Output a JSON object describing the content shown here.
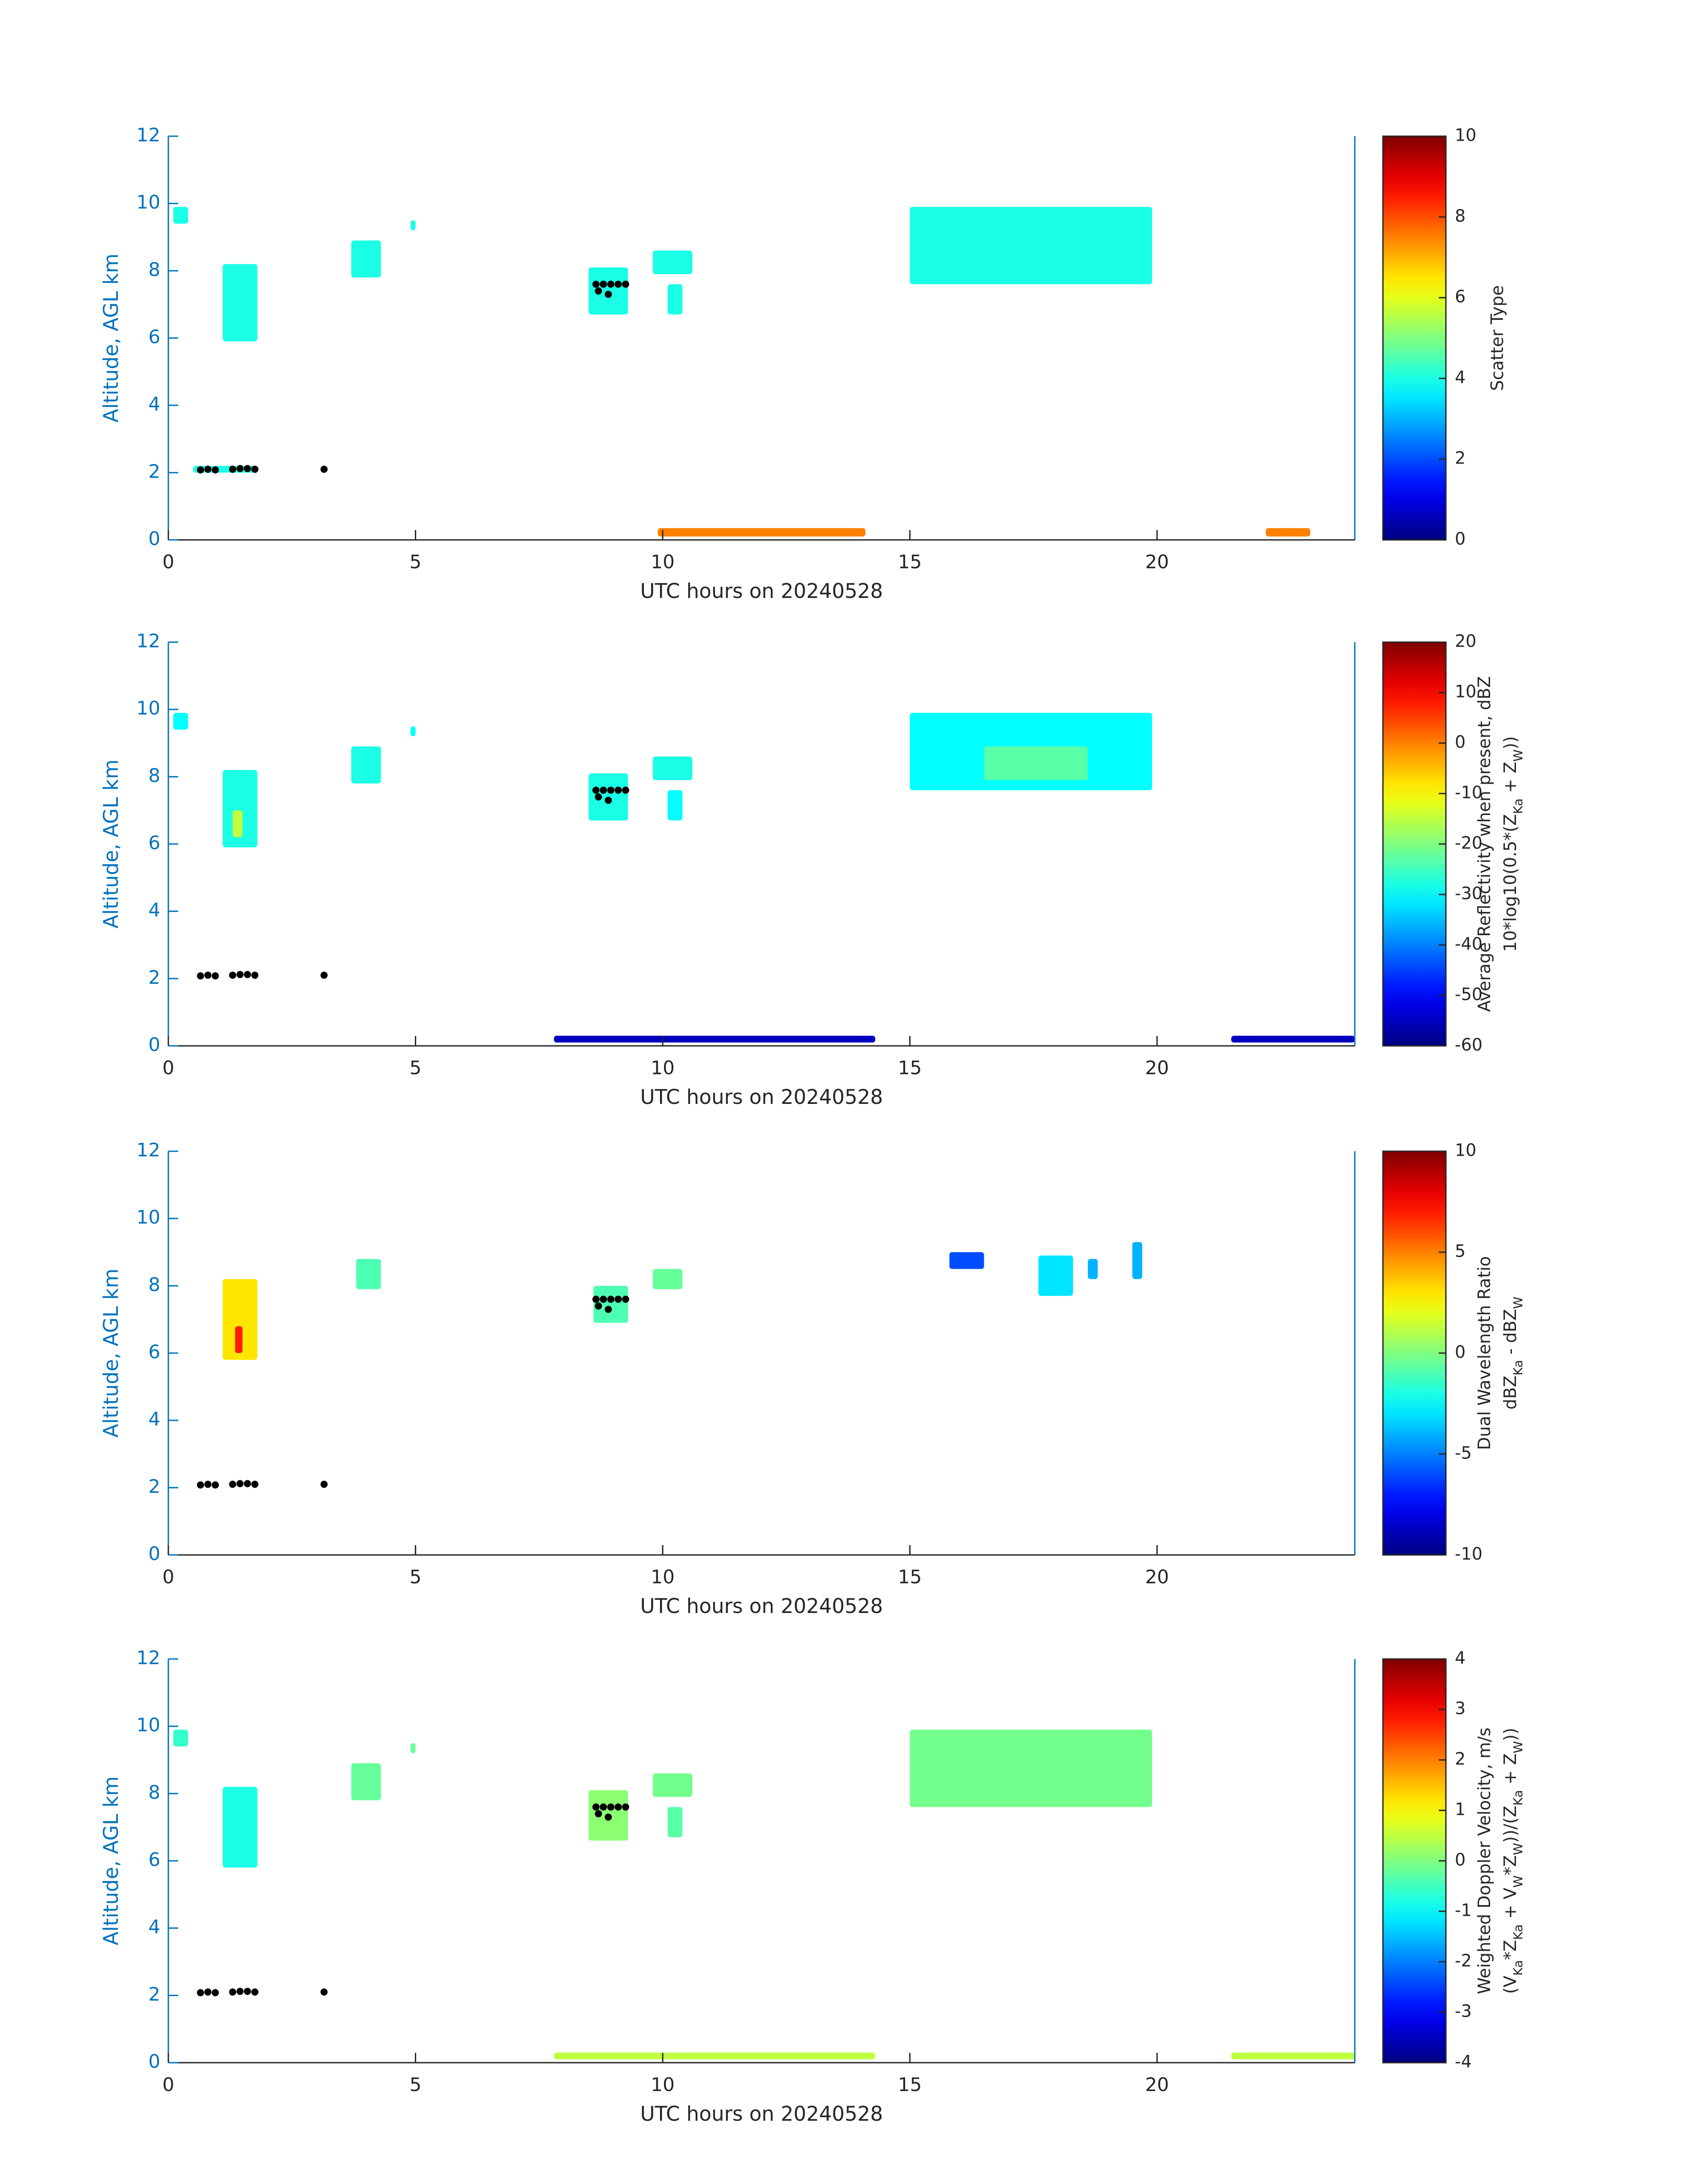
{
  "chart_data": [
    {
      "type": "timeheight",
      "colormap": "jet",
      "xlabel": "UTC hours on 20240528",
      "ylabel": "Altitude, AGL km",
      "xlim": [
        0,
        24
      ],
      "xticks": [
        0,
        5,
        10,
        15,
        20
      ],
      "ylim": [
        0,
        12
      ],
      "yticks": [
        0,
        2,
        4,
        6,
        8,
        10,
        12
      ],
      "clim": [
        0,
        10
      ],
      "cticks": [
        0,
        2,
        4,
        6,
        8,
        10
      ],
      "clabel": [
        [
          "Scatter Type"
        ]
      ],
      "regions": [
        {
          "x": [
            0.1,
            0.4
          ],
          "y": [
            9.4,
            9.9
          ],
          "value": 4
        },
        {
          "x": [
            1.1,
            1.8
          ],
          "y": [
            5.9,
            8.2
          ],
          "value": 4
        },
        {
          "x": [
            3.7,
            4.3
          ],
          "y": [
            7.8,
            8.9
          ],
          "value": 4
        },
        {
          "x": [
            4.9,
            5.0
          ],
          "y": [
            9.2,
            9.5
          ],
          "value": 4
        },
        {
          "x": [
            8.5,
            9.3
          ],
          "y": [
            6.7,
            8.1
          ],
          "value": 4
        },
        {
          "x": [
            9.8,
            10.6
          ],
          "y": [
            7.9,
            8.6
          ],
          "value": 4
        },
        {
          "x": [
            10.1,
            10.4
          ],
          "y": [
            6.7,
            7.6
          ],
          "value": 4
        },
        {
          "x": [
            15.0,
            19.9
          ],
          "y": [
            7.6,
            9.9
          ],
          "value": 4
        },
        {
          "x": [
            0.5,
            1.8
          ],
          "y": [
            2.0,
            2.2
          ],
          "value": 4
        },
        {
          "x": [
            9.9,
            14.1
          ],
          "y": [
            0.1,
            0.35
          ],
          "value": 7.5
        },
        {
          "x": [
            22.2,
            23.1
          ],
          "y": [
            0.1,
            0.35
          ],
          "value": 7.5
        }
      ],
      "markers": {
        "x": [
          0.65,
          0.8,
          0.95,
          1.3,
          1.45,
          1.6,
          1.75,
          3.15,
          8.65,
          8.8,
          8.95,
          9.1,
          9.25,
          8.7,
          8.9
        ],
        "y": [
          2.08,
          2.1,
          2.08,
          2.1,
          2.12,
          2.12,
          2.1,
          2.1,
          7.6,
          7.6,
          7.6,
          7.6,
          7.6,
          7.4,
          7.3
        ],
        "color": "#000000"
      }
    },
    {
      "type": "timeheight",
      "colormap": "jet",
      "xlabel": "UTC hours on 20240528",
      "ylabel": "Altitude, AGL km",
      "xlim": [
        0,
        24
      ],
      "xticks": [
        0,
        5,
        10,
        15,
        20
      ],
      "ylim": [
        0,
        12
      ],
      "yticks": [
        0,
        2,
        4,
        6,
        8,
        10,
        12
      ],
      "clim": [
        -60,
        20
      ],
      "cticks": [
        -60,
        -50,
        -40,
        -30,
        -20,
        -10,
        0,
        10,
        20
      ],
      "clabel": [
        [
          "Average Reflectivity when present, dBZ"
        ],
        [
          "10*log10(0.5*(Z",
          "Ka",
          " + Z",
          "W",
          "))"
        ]
      ],
      "regions": [
        {
          "x": [
            0.1,
            0.4
          ],
          "y": [
            9.4,
            9.9
          ],
          "value": -30
        },
        {
          "x": [
            1.1,
            1.8
          ],
          "y": [
            5.9,
            8.2
          ],
          "value": -28
        },
        {
          "x": [
            1.3,
            1.5
          ],
          "y": [
            6.2,
            7.0
          ],
          "value": -15
        },
        {
          "x": [
            3.7,
            4.3
          ],
          "y": [
            7.8,
            8.9
          ],
          "value": -28
        },
        {
          "x": [
            4.9,
            5.0
          ],
          "y": [
            9.2,
            9.5
          ],
          "value": -30
        },
        {
          "x": [
            8.5,
            9.3
          ],
          "y": [
            6.7,
            8.1
          ],
          "value": -28
        },
        {
          "x": [
            9.8,
            10.6
          ],
          "y": [
            7.9,
            8.6
          ],
          "value": -28
        },
        {
          "x": [
            10.1,
            10.4
          ],
          "y": [
            6.7,
            7.6
          ],
          "value": -30
        },
        {
          "x": [
            15.0,
            19.9
          ],
          "y": [
            7.6,
            9.9
          ],
          "value": -30
        },
        {
          "x": [
            16.5,
            18.6
          ],
          "y": [
            7.9,
            8.9
          ],
          "value": -23
        },
        {
          "x": [
            7.8,
            14.3
          ],
          "y": [
            0.1,
            0.3
          ],
          "value": -55
        },
        {
          "x": [
            21.5,
            24.0
          ],
          "y": [
            0.1,
            0.3
          ],
          "value": -55
        }
      ],
      "markers": {
        "x": [
          0.65,
          0.8,
          0.95,
          1.3,
          1.45,
          1.6,
          1.75,
          3.15,
          8.65,
          8.8,
          8.95,
          9.1,
          9.25,
          8.7,
          8.9
        ],
        "y": [
          2.08,
          2.1,
          2.08,
          2.1,
          2.12,
          2.12,
          2.1,
          2.1,
          7.6,
          7.6,
          7.6,
          7.6,
          7.6,
          7.4,
          7.3
        ],
        "color": "#000000"
      }
    },
    {
      "type": "timeheight",
      "colormap": "jet",
      "xlabel": "UTC hours on 20240528",
      "ylabel": "Altitude, AGL km",
      "xlim": [
        0,
        24
      ],
      "xticks": [
        0,
        5,
        10,
        15,
        20
      ],
      "ylim": [
        0,
        12
      ],
      "yticks": [
        0,
        2,
        4,
        6,
        8,
        10,
        12
      ],
      "clim": [
        -10,
        10
      ],
      "cticks": [
        -10,
        -5,
        0,
        5,
        10
      ],
      "clabel": [
        [
          "Dual Wavelength Ratio"
        ],
        [
          "dBZ",
          "Ka",
          " - dBZ",
          "W"
        ]
      ],
      "regions": [
        {
          "x": [
            1.1,
            1.8
          ],
          "y": [
            5.8,
            8.2
          ],
          "value": 3
        },
        {
          "x": [
            1.35,
            1.5
          ],
          "y": [
            6.0,
            6.8
          ],
          "value": 7
        },
        {
          "x": [
            3.8,
            4.3
          ],
          "y": [
            7.9,
            8.8
          ],
          "value": -1
        },
        {
          "x": [
            8.6,
            9.3
          ],
          "y": [
            6.9,
            8.0
          ],
          "value": -1
        },
        {
          "x": [
            9.8,
            10.4
          ],
          "y": [
            7.9,
            8.5
          ],
          "value": -0.5
        },
        {
          "x": [
            15.8,
            16.5
          ],
          "y": [
            8.5,
            9.0
          ],
          "value": -6
        },
        {
          "x": [
            17.6,
            18.3
          ],
          "y": [
            7.7,
            8.9
          ],
          "value": -3
        },
        {
          "x": [
            18.6,
            18.8
          ],
          "y": [
            8.2,
            8.8
          ],
          "value": -4
        },
        {
          "x": [
            19.5,
            19.7
          ],
          "y": [
            8.2,
            9.3
          ],
          "value": -4
        }
      ],
      "markers": {
        "x": [
          0.65,
          0.8,
          0.95,
          1.3,
          1.45,
          1.6,
          1.75,
          3.15,
          8.65,
          8.8,
          8.95,
          9.1,
          9.25,
          8.7,
          8.9
        ],
        "y": [
          2.08,
          2.1,
          2.08,
          2.1,
          2.12,
          2.12,
          2.1,
          2.1,
          7.6,
          7.6,
          7.6,
          7.6,
          7.6,
          7.4,
          7.3
        ],
        "color": "#000000"
      }
    },
    {
      "type": "timeheight",
      "colormap": "jet",
      "xlabel": "UTC hours on 20240528",
      "ylabel": "Altitude, AGL km",
      "xlim": [
        0,
        24
      ],
      "xticks": [
        0,
        5,
        10,
        15,
        20
      ],
      "ylim": [
        0,
        12
      ],
      "yticks": [
        0,
        2,
        4,
        6,
        8,
        10,
        12
      ],
      "clim": [
        -4,
        4
      ],
      "cticks": [
        -4,
        -3,
        -2,
        -1,
        0,
        1,
        2,
        3,
        4
      ],
      "clabel": [
        [
          "Weighted Doppler Velocity, m/s"
        ],
        [
          "(V",
          "Ka",
          "*Z",
          "Ka",
          " + V",
          "W",
          "*Z",
          "W",
          "))/(Z",
          "Ka",
          " + Z",
          "W",
          "))"
        ]
      ],
      "regions": [
        {
          "x": [
            0.1,
            0.4
          ],
          "y": [
            9.4,
            9.9
          ],
          "value": -0.6
        },
        {
          "x": [
            1.1,
            1.8
          ],
          "y": [
            5.8,
            8.2
          ],
          "value": -0.8
        },
        {
          "x": [
            3.7,
            4.3
          ],
          "y": [
            7.8,
            8.9
          ],
          "value": -0.2
        },
        {
          "x": [
            4.9,
            5.0
          ],
          "y": [
            9.2,
            9.5
          ],
          "value": -0.2
        },
        {
          "x": [
            8.5,
            9.3
          ],
          "y": [
            6.6,
            8.1
          ],
          "value": 0.1
        },
        {
          "x": [
            9.8,
            10.6
          ],
          "y": [
            7.9,
            8.6
          ],
          "value": -0.1
        },
        {
          "x": [
            10.1,
            10.4
          ],
          "y": [
            6.7,
            7.6
          ],
          "value": -0.3
        },
        {
          "x": [
            15.0,
            19.9
          ],
          "y": [
            7.6,
            9.9
          ],
          "value": -0.1
        },
        {
          "x": [
            7.8,
            14.3
          ],
          "y": [
            0.1,
            0.3
          ],
          "value": 0.5
        },
        {
          "x": [
            21.5,
            24.0
          ],
          "y": [
            0.1,
            0.3
          ],
          "value": 0.5
        }
      ],
      "markers": {
        "x": [
          0.65,
          0.8,
          0.95,
          1.3,
          1.45,
          1.6,
          1.75,
          3.15,
          8.65,
          8.8,
          8.95,
          9.1,
          9.25,
          8.7,
          8.9
        ],
        "y": [
          2.08,
          2.1,
          2.08,
          2.1,
          2.12,
          2.12,
          2.1,
          2.1,
          7.6,
          7.6,
          7.6,
          7.6,
          7.6,
          7.4,
          7.3
        ],
        "color": "#000000"
      }
    }
  ]
}
